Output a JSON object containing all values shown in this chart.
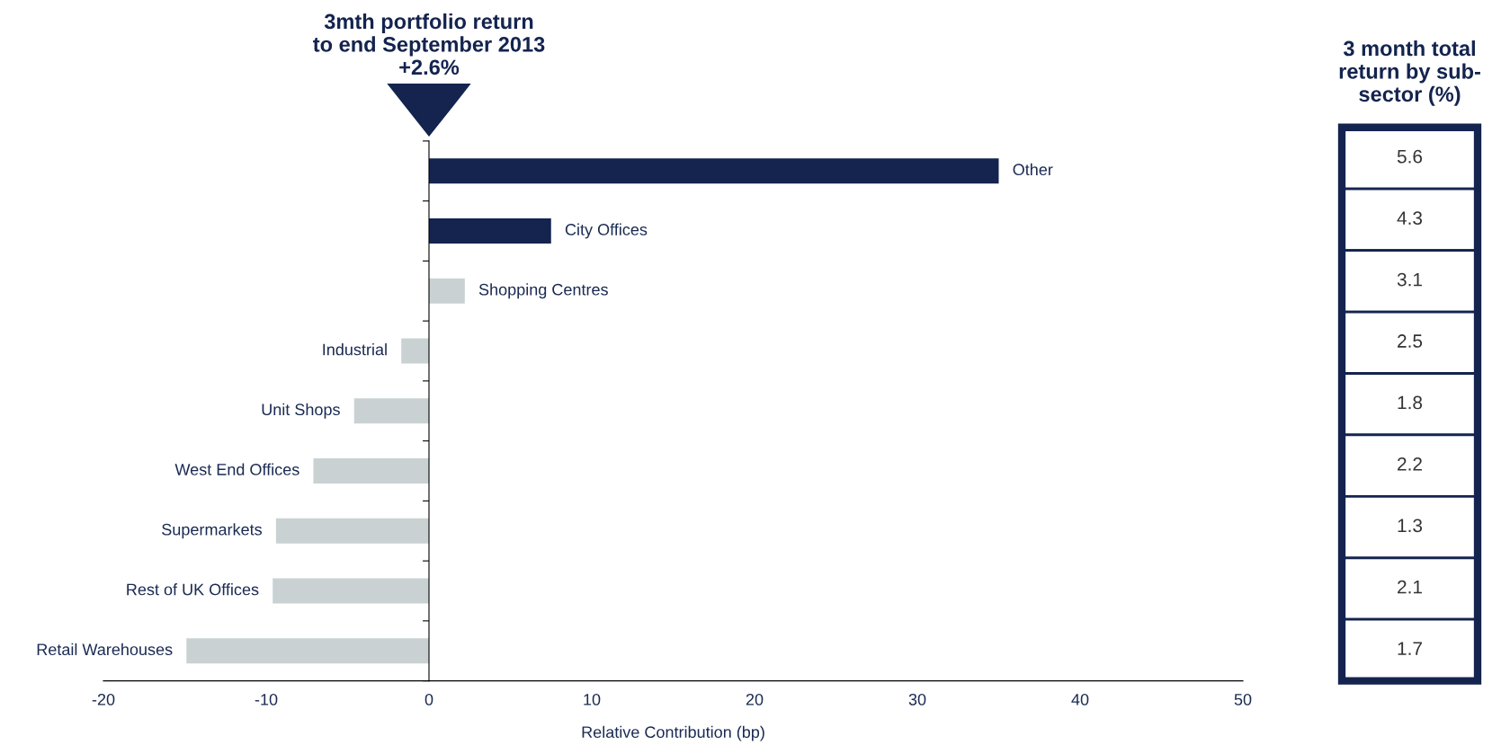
{
  "chart_data": [
    {
      "type": "bar",
      "orientation": "horizontal",
      "title": "3mth portfolio return\nto end September 2013\n+2.6%",
      "xlabel": "Relative Contribution (bp)",
      "categories": [
        "Other",
        "City Offices",
        "Shopping Centres",
        "Industrial",
        "Unit Shops",
        "West End Offices",
        "Supermarkets",
        "Rest of UK Offices",
        "Retail Warehouses"
      ],
      "values": [
        35.0,
        7.5,
        2.2,
        -1.7,
        -4.6,
        -7.1,
        -9.4,
        -9.6,
        -14.9
      ],
      "colors": [
        "#14244f",
        "#14244f",
        "#c9d1d3",
        "#c9d1d3",
        "#c9d1d3",
        "#c9d1d3",
        "#c9d1d3",
        "#c9d1d3",
        "#c9d1d3"
      ],
      "xlim": [
        -20,
        50
      ],
      "xticks": [
        -20,
        -10,
        0,
        10,
        20,
        30,
        40,
        50
      ]
    },
    {
      "type": "other",
      "title": "3 month total\nreturn by sub-\nsector (%)",
      "annotations": [
        "5.6",
        "4.3",
        "3.1",
        "2.5",
        "1.8",
        "2.2",
        "1.3",
        "2.1",
        "1.7"
      ]
    }
  ]
}
